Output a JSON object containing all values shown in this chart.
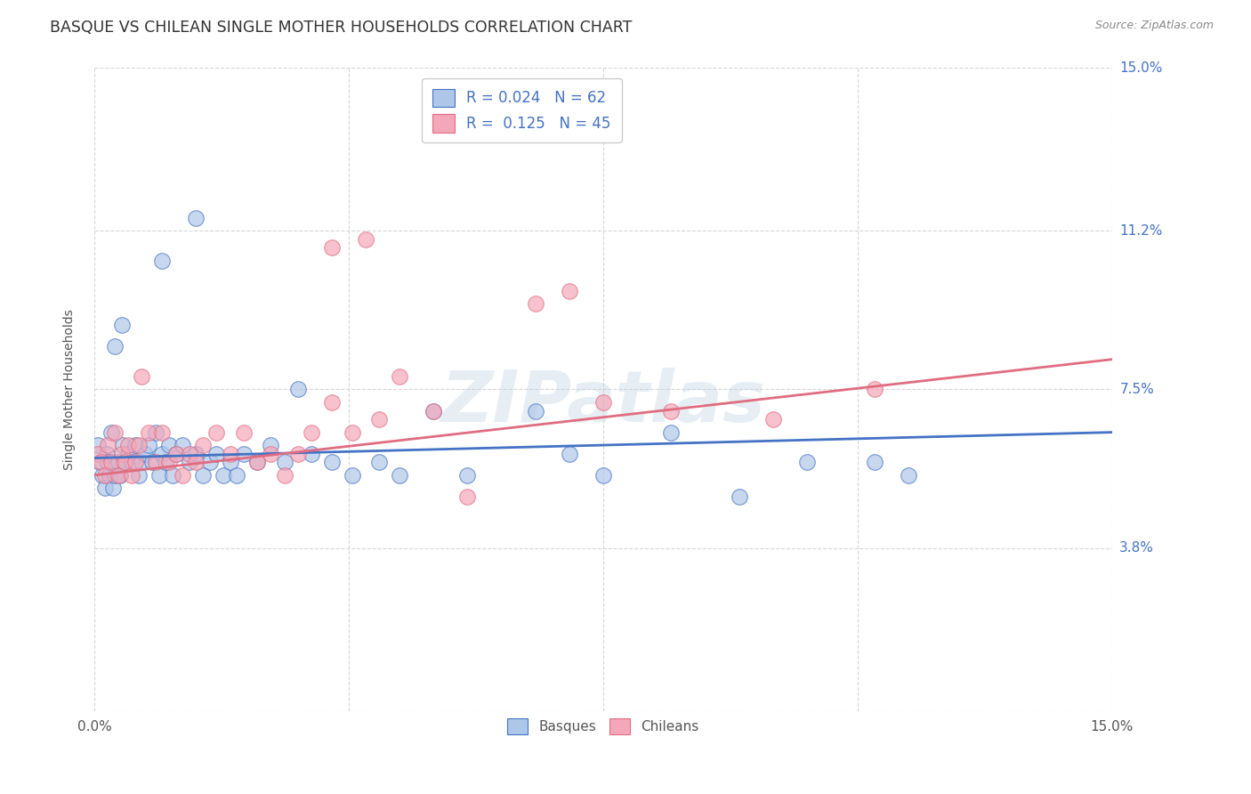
{
  "title": "BASQUE VS CHILEAN SINGLE MOTHER HOUSEHOLDS CORRELATION CHART",
  "source": "Source: ZipAtlas.com",
  "ylabel": "Single Mother Households",
  "xlim": [
    0.0,
    15.0
  ],
  "ylim": [
    0.0,
    15.0
  ],
  "yticks": [
    0.0,
    3.8,
    7.5,
    11.2,
    15.0
  ],
  "ytick_labels": [
    "",
    "3.8%",
    "7.5%",
    "11.2%",
    "15.0%"
  ],
  "xticks": [
    0.0,
    3.75,
    7.5,
    11.25,
    15.0
  ],
  "xtick_labels": [
    "0.0%",
    "",
    "",
    "",
    "15.0%"
  ],
  "basque_R": 0.024,
  "basque_N": 62,
  "chilean_R": 0.125,
  "chilean_N": 45,
  "basque_color": "#aec6e8",
  "chilean_color": "#f4a7b9",
  "basque_line_color": "#4472c4",
  "chilean_line_color": "#e06c80",
  "legend_text_color": "#4472c4",
  "watermark_text": "ZIPatlas",
  "background_color": "#ffffff",
  "grid_color": "#cccccc",
  "basques_x": [
    0.05,
    0.08,
    0.12,
    0.15,
    0.18,
    0.2,
    0.22,
    0.25,
    0.28,
    0.3,
    0.35,
    0.38,
    0.42,
    0.45,
    0.5,
    0.55,
    0.6,
    0.65,
    0.7,
    0.75,
    0.8,
    0.85,
    0.9,
    0.95,
    1.0,
    1.05,
    1.1,
    1.15,
    1.2,
    1.3,
    1.4,
    1.5,
    1.6,
    1.7,
    1.8,
    1.9,
    2.0,
    2.1,
    2.2,
    2.4,
    2.6,
    2.8,
    3.0,
    3.2,
    3.5,
    3.8,
    4.2,
    4.5,
    5.0,
    5.5,
    6.5,
    7.0,
    7.5,
    8.5,
    9.5,
    10.5,
    11.5,
    12.0,
    1.0,
    1.5,
    0.3,
    0.4
  ],
  "basques_y": [
    6.2,
    5.8,
    5.5,
    5.2,
    6.0,
    5.8,
    5.5,
    6.5,
    5.2,
    5.5,
    5.8,
    5.5,
    6.2,
    5.8,
    6.0,
    5.8,
    6.2,
    5.5,
    5.8,
    6.0,
    6.2,
    5.8,
    6.5,
    5.5,
    6.0,
    5.8,
    6.2,
    5.5,
    6.0,
    6.2,
    5.8,
    6.0,
    5.5,
    5.8,
    6.0,
    5.5,
    5.8,
    5.5,
    6.0,
    5.8,
    6.2,
    5.8,
    7.5,
    6.0,
    5.8,
    5.5,
    5.8,
    5.5,
    7.0,
    5.5,
    7.0,
    6.0,
    5.5,
    6.5,
    5.0,
    5.8,
    5.8,
    5.5,
    10.5,
    11.5,
    8.5,
    9.0
  ],
  "chileans_x": [
    0.05,
    0.1,
    0.15,
    0.2,
    0.25,
    0.3,
    0.35,
    0.4,
    0.45,
    0.5,
    0.55,
    0.6,
    0.65,
    0.7,
    0.8,
    0.9,
    1.0,
    1.1,
    1.2,
    1.3,
    1.4,
    1.5,
    1.6,
    1.8,
    2.0,
    2.2,
    2.4,
    2.6,
    2.8,
    3.0,
    3.2,
    3.5,
    3.8,
    4.2,
    4.5,
    5.0,
    5.5,
    6.5,
    7.0,
    7.5,
    8.5,
    10.0,
    11.5,
    3.5,
    4.0
  ],
  "chileans_y": [
    6.0,
    5.8,
    5.5,
    6.2,
    5.8,
    6.5,
    5.5,
    6.0,
    5.8,
    6.2,
    5.5,
    5.8,
    6.2,
    7.8,
    6.5,
    5.8,
    6.5,
    5.8,
    6.0,
    5.5,
    6.0,
    5.8,
    6.2,
    6.5,
    6.0,
    6.5,
    5.8,
    6.0,
    5.5,
    6.0,
    6.5,
    7.2,
    6.5,
    6.8,
    7.8,
    7.0,
    5.0,
    9.5,
    9.8,
    7.2,
    7.0,
    6.8,
    7.5,
    10.8,
    11.0
  ]
}
